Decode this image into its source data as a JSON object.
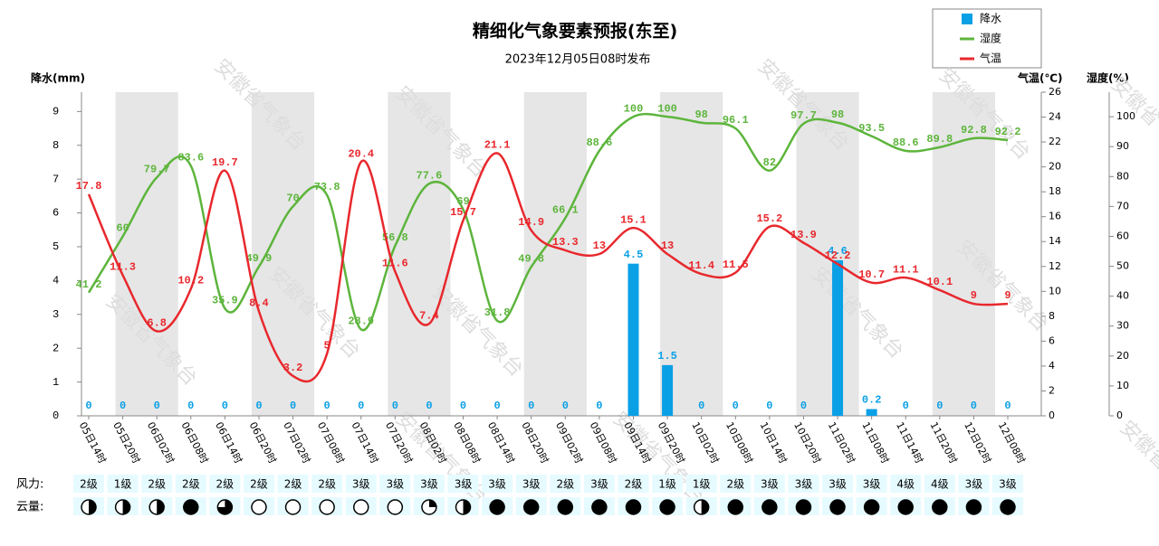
{
  "chart_data": {
    "type": "combo",
    "title": "精细化气象要素预报(东至)",
    "subtitle": "2023年12月05日08时发布",
    "watermark": "安徽省气象台",
    "y_label": "降水(mm)",
    "y2_label": "气温(℃)",
    "y3_label": "湿度(%)",
    "categories": [
      "05日14时",
      "05日20时",
      "06日02时",
      "06日08时",
      "06日14时",
      "06日20时",
      "07日02时",
      "07日08时",
      "07日14时",
      "07日20时",
      "08日02时",
      "08日08时",
      "08日14时",
      "08日20时",
      "09日02时",
      "09日08时",
      "09日14时",
      "09日20时",
      "10日02时",
      "10日08时",
      "10日14时",
      "10日20时",
      "11日02时",
      "11日08时",
      "11日14时",
      "11日20时",
      "12日02时",
      "12日08时"
    ],
    "series": [
      {
        "name": "降水",
        "kind": "bar",
        "axis": "y",
        "color": "#0aa0e6",
        "values": [
          0,
          0,
          0,
          0,
          0,
          0,
          0,
          0,
          0,
          0,
          0,
          0,
          0,
          0,
          0,
          0,
          4.5,
          1.5,
          0,
          0,
          0,
          0,
          4.6,
          0.2,
          0,
          0,
          0,
          0
        ]
      },
      {
        "name": "湿度",
        "kind": "line",
        "axis": "y3",
        "color": "#5db53c",
        "values": [
          41.2,
          60,
          79.7,
          83.6,
          35.9,
          49.9,
          70,
          73.8,
          28.9,
          56.8,
          77.6,
          69,
          31.8,
          49.8,
          66.1,
          88.6,
          100,
          100,
          98,
          96.1,
          82,
          97.7,
          98,
          93.5,
          88.6,
          89.8,
          92.8,
          92.2
        ]
      },
      {
        "name": "气温",
        "kind": "line",
        "axis": "y2",
        "color": "#e8282d",
        "values": [
          17.8,
          11.3,
          6.8,
          10.2,
          19.7,
          8.4,
          3.2,
          5,
          20.4,
          11.6,
          7.4,
          15.7,
          21.1,
          14.9,
          13.3,
          13,
          15.1,
          13,
          11.4,
          11.5,
          15.2,
          13.9,
          12.2,
          10.7,
          11.1,
          10.1,
          9,
          9
        ]
      }
    ],
    "ylim": [
      0,
      9.57
    ],
    "yticks": [
      0,
      1,
      2,
      3,
      4,
      5,
      6,
      7,
      8,
      9
    ],
    "y2lim": [
      0,
      26
    ],
    "y2ticks": [
      0,
      2,
      4,
      6,
      8,
      10,
      12,
      14,
      16,
      18,
      20,
      22,
      24,
      26
    ],
    "y3lim": [
      0,
      108.2
    ],
    "y3ticks": [
      0,
      10,
      20,
      30,
      40,
      50,
      60,
      70,
      80,
      90,
      100
    ],
    "wind_label": "风力:",
    "wind": [
      "2级",
      "1级",
      "2级",
      "2级",
      "2级",
      "2级",
      "2级",
      "2级",
      "3级",
      "3级",
      "3级",
      "3级",
      "3级",
      "3级",
      "2级",
      "3级",
      "2级",
      "1级",
      "1级",
      "2级",
      "3级",
      "3级",
      "3级",
      "3级",
      "4级",
      "4级",
      "3级",
      "3级"
    ],
    "cloud_label": "云量:",
    "cloud": [
      0.5,
      0.5,
      0.5,
      1,
      0.75,
      0,
      0,
      0,
      0,
      0,
      0.25,
      0.5,
      1,
      1,
      1,
      1,
      1,
      1,
      0.5,
      1,
      1,
      1,
      1,
      1,
      1,
      1,
      1,
      1
    ]
  }
}
